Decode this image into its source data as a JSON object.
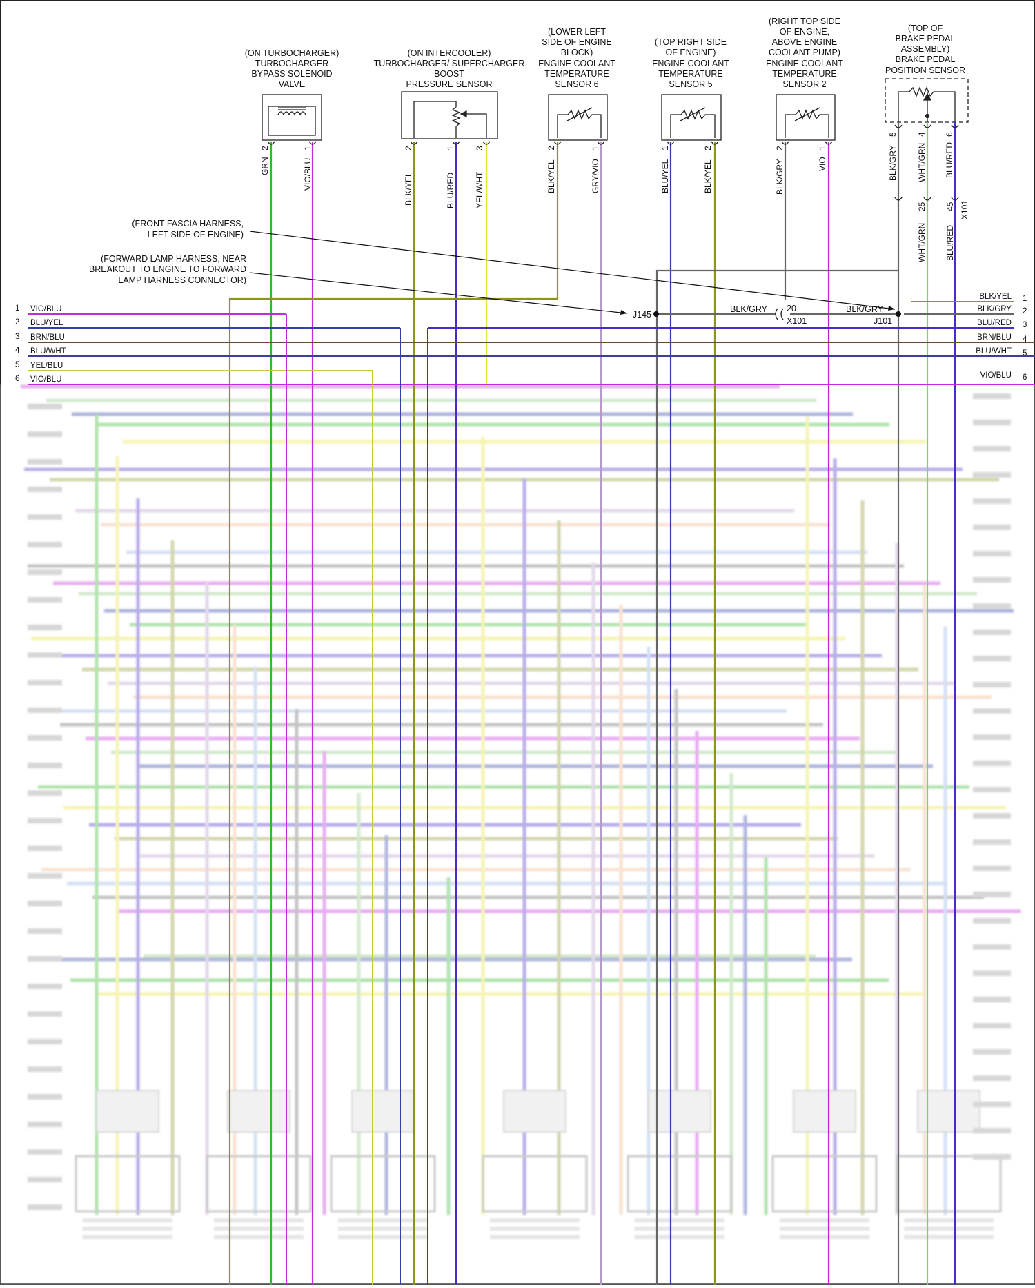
{
  "colors": {
    "GRN": "#35b82c",
    "VIO/BLU": "#c22bdd",
    "BLK/YEL": "#8d9320",
    "BLU/RED": "#4b2bc8",
    "YEL/WHT": "#e6e43a",
    "GRY/VIO": "#b79ac9",
    "BLU/YEL": "#3340aa",
    "BLK/GRY": "#666666",
    "VIO": "#c922d6",
    "WHT/GRN": "#8cc77b",
    "BRN/BLU": "#6b4a2a",
    "BLU/WHT": "#3d3d9a",
    "YEL/BLU": "#c8c83b"
  },
  "components": [
    {
      "key": "bypass",
      "lines": [
        "(ON TURBOCHARGER)",
        "TURBOCHARGER",
        "BYPASS SOLENOID",
        "VALVE"
      ]
    },
    {
      "key": "boost",
      "lines": [
        "(ON INTERCOOLER)",
        "TURBOCHARGER/ SUPERCHARGER",
        "BOOST",
        "PRESSURE SENSOR"
      ]
    },
    {
      "key": "ect6",
      "lines": [
        "(LOWER LEFT",
        "SIDE OF ENGINE",
        "BLOCK)",
        "ENGINE COOLANT",
        "TEMPERATURE",
        "SENSOR 6"
      ]
    },
    {
      "key": "ect5",
      "lines": [
        "(TOP RIGHT SIDE",
        "OF ENGINE)",
        "ENGINE COOLANT",
        "TEMPERATURE",
        "SENSOR 5"
      ]
    },
    {
      "key": "ect2",
      "lines": [
        "(RIGHT TOP SIDE",
        "OF ENGINE,",
        "ABOVE ENGINE",
        "COOLANT PUMP)",
        "ENGINE COOLANT",
        "TEMPERATURE",
        "SENSOR 2"
      ]
    },
    {
      "key": "bpp",
      "lines": [
        "(TOP OF",
        "BRAKE PEDAL",
        "ASSEMBLY)",
        "BRAKE PEDAL",
        "POSITION SENSOR"
      ]
    }
  ],
  "pins": {
    "bypass": [
      "2",
      "1"
    ],
    "boost": [
      "2",
      "1",
      "3"
    ],
    "ect6": [
      "2",
      "1"
    ],
    "ect5": [
      "1",
      "2"
    ],
    "ect2": [
      "2",
      "1"
    ],
    "bpp": [
      "5",
      "4",
      "6"
    ],
    "x101_bpp": [
      "25",
      "45"
    ],
    "x101_label": "X101"
  },
  "wire_labels": {
    "bypass": [
      "GRN",
      "VIO/BLU"
    ],
    "boost": [
      "BLK/YEL",
      "BLU/RED",
      "YEL/WHT"
    ],
    "ect6": [
      "BLK/YEL",
      "GRY/VIO"
    ],
    "ect5": [
      "BLU/YEL",
      "BLK/YEL"
    ],
    "ect2": [
      "BLK/GRY",
      "VIO"
    ],
    "bpp": [
      "BLK/GRY",
      "WHT/GRN",
      "BLU/RED"
    ],
    "bpp_lower": [
      "WHT/GRN",
      "BLU/RED"
    ]
  },
  "harness_notes": {
    "front_fascia": [
      "(FRONT FASCIA HARNESS,",
      "LEFT SIDE OF ENGINE)"
    ],
    "forward_lamp": [
      "(FORWARD LAMP HARNESS, NEAR",
      "BREAKOUT TO ENGINE TO FORWARD",
      "LAMP HARNESS CONNECTOR)"
    ]
  },
  "splices": {
    "j145": "J145",
    "j101": "J101",
    "wire_between": "BLK/GRY",
    "wire_after": "BLK/GRY",
    "x101_pin": "20",
    "x101_label": "X101"
  },
  "left_bus": [
    {
      "num": "1",
      "label": "VIO/BLU"
    },
    {
      "num": "2",
      "label": "BLU/YEL"
    },
    {
      "num": "3",
      "label": "BRN/BLU"
    },
    {
      "num": "4",
      "label": "BLU/WHT"
    },
    {
      "num": "5",
      "label": "YEL/BLU"
    },
    {
      "num": "6",
      "label": "VIO/BLU"
    }
  ],
  "right_bus": [
    {
      "num": "1",
      "label": "BLK/YEL"
    },
    {
      "num": "2",
      "label": "BLK/GRY"
    },
    {
      "num": "3",
      "label": "BLU/RED"
    },
    {
      "num": "4",
      "label": "BRN/BLU"
    },
    {
      "num": "5",
      "label": "BLU/WHT"
    },
    {
      "num": "6",
      "label": "VIO/BLU"
    }
  ]
}
